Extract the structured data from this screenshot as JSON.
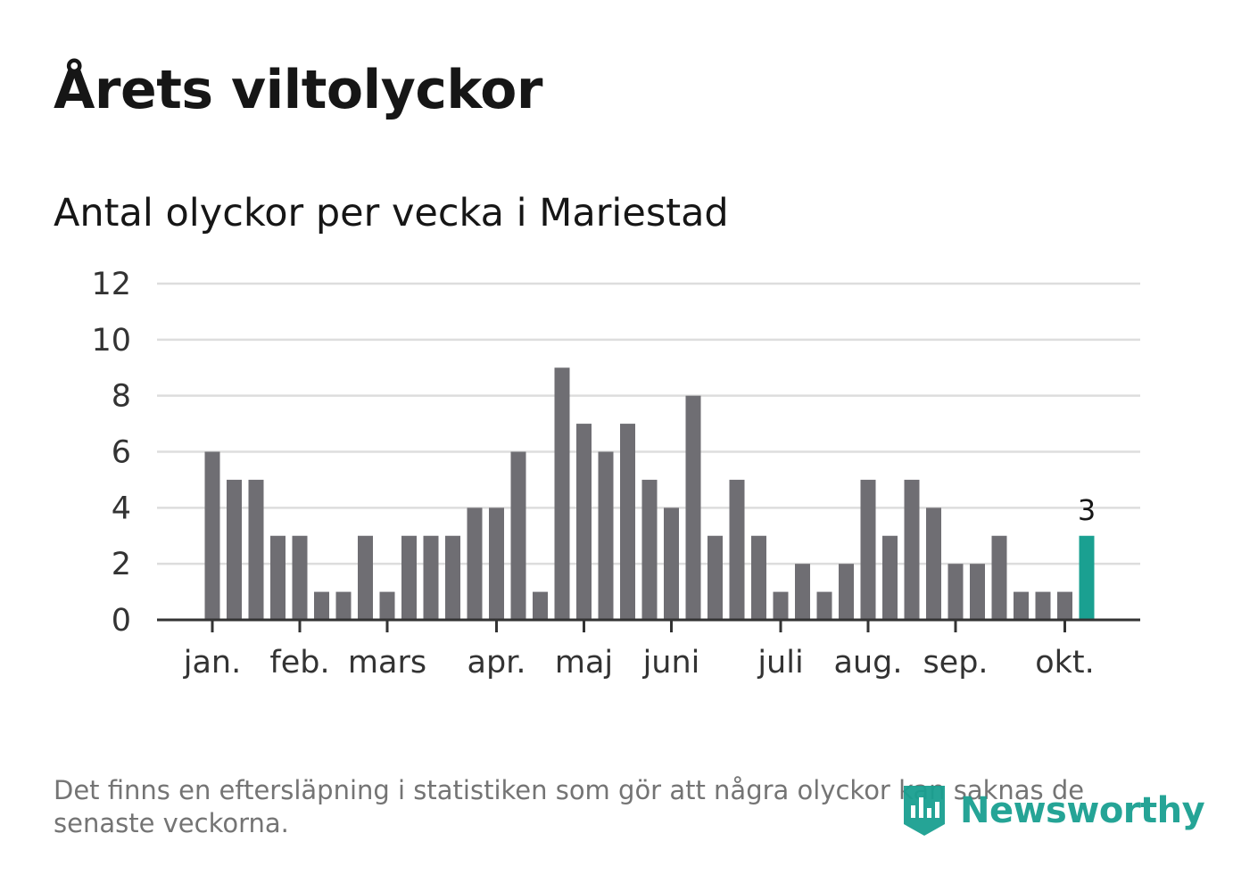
{
  "header": {
    "title": "Årets viltolyckor",
    "subtitle": "Antal olyckor per vecka i Mariestad"
  },
  "footer": {
    "note": "Det finns en eftersläpning i statistiken som gör att några olyckor kan saknas de senaste veckorna.",
    "brand": "Newsworthy"
  },
  "colors": {
    "bar": "#6f6e73",
    "highlight": "#1aa091",
    "grid": "#dddddd",
    "axis": "#333333",
    "brand": "#1aa091"
  },
  "chart_data": {
    "type": "bar",
    "title": "Antal olyckor per vecka i Mariestad",
    "xlabel": "",
    "ylabel": "",
    "ylim": [
      0,
      12
    ],
    "yticks": [
      0,
      2,
      4,
      6,
      8,
      10,
      12
    ],
    "grid": true,
    "values": [
      6,
      5,
      5,
      3,
      3,
      1,
      1,
      3,
      1,
      3,
      3,
      3,
      4,
      4,
      6,
      1,
      9,
      7,
      6,
      7,
      5,
      4,
      8,
      3,
      5,
      3,
      1,
      2,
      1,
      2,
      5,
      3,
      5,
      4,
      2,
      2,
      3,
      1,
      1,
      1,
      3
    ],
    "month_labels": [
      {
        "label": "jan.",
        "week_index": 0
      },
      {
        "label": "feb.",
        "week_index": 4
      },
      {
        "label": "mars",
        "week_index": 8
      },
      {
        "label": "apr.",
        "week_index": 13
      },
      {
        "label": "maj",
        "week_index": 17
      },
      {
        "label": "juni",
        "week_index": 21
      },
      {
        "label": "juli",
        "week_index": 26
      },
      {
        "label": "aug.",
        "week_index": 30
      },
      {
        "label": "sep.",
        "week_index": 34
      },
      {
        "label": "okt.",
        "week_index": 39
      }
    ],
    "highlight_index": 40,
    "highlight_label": "3"
  }
}
